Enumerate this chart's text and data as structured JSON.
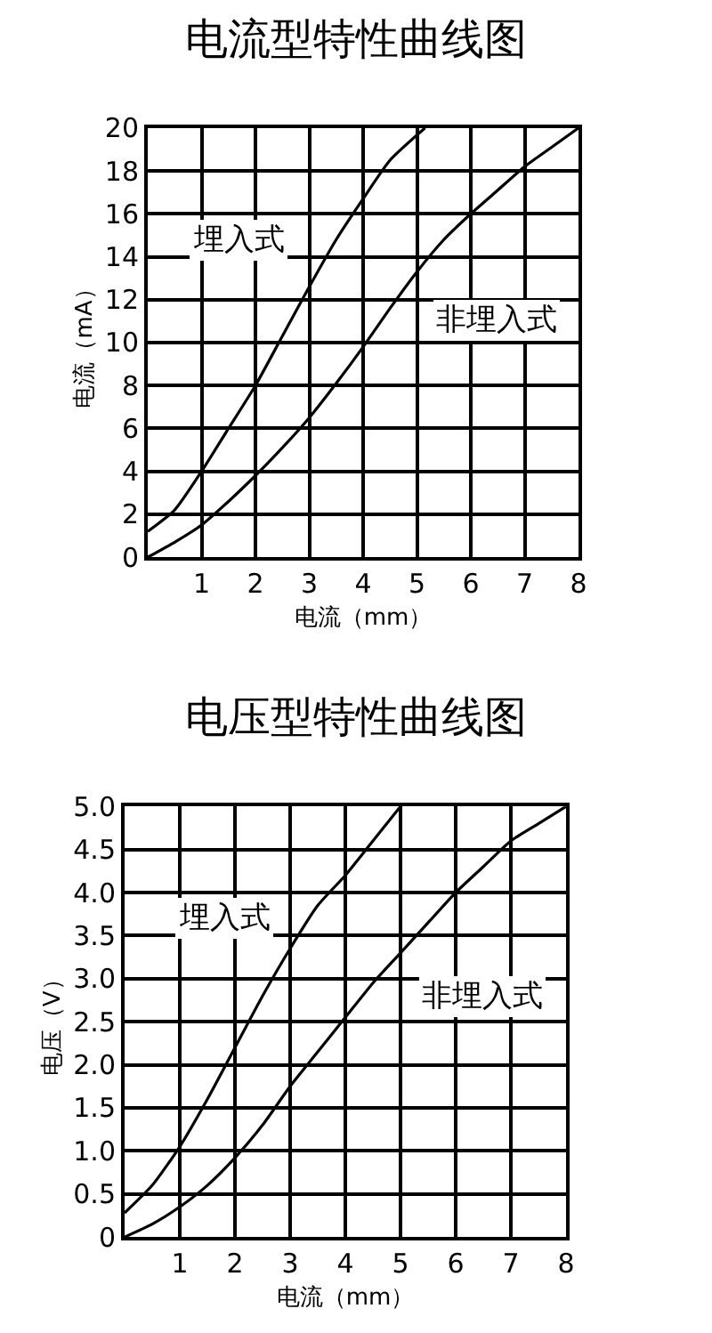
{
  "chart_data": [
    {
      "type": "line",
      "title": "电流型特性曲线图",
      "xlabel": "电流（mm）",
      "ylabel": "电流（mA）",
      "series": [
        {
          "name": "埋入式",
          "color": "#000000",
          "x": [
            0,
            0.5,
            1,
            1.5,
            2,
            2.5,
            3,
            3.5,
            4,
            4.5,
            5.15
          ],
          "values": [
            1.2,
            2.2,
            4,
            6,
            8,
            10.3,
            12.6,
            14.8,
            16.7,
            18.5,
            20
          ]
        },
        {
          "name": "非埋入式",
          "color": "#000000",
          "x": [
            0,
            0.5,
            1,
            1.5,
            2,
            2.5,
            3,
            3.5,
            4,
            4.5,
            5,
            5.5,
            6,
            6.5,
            7,
            7.5,
            8
          ],
          "values": [
            0,
            0.7,
            1.5,
            2.6,
            3.8,
            5.1,
            6.5,
            8.1,
            9.8,
            11.6,
            13.3,
            14.8,
            16,
            17.1,
            18.2,
            19.1,
            20
          ]
        }
      ],
      "xlim": [
        0,
        8
      ],
      "xticks": [
        1,
        2,
        3,
        4,
        5,
        6,
        7,
        8
      ],
      "ylim": [
        0,
        20
      ],
      "yticks": [
        0,
        2,
        4,
        6,
        8,
        10,
        12,
        14,
        16,
        18,
        20
      ],
      "grid": true,
      "legend": false
    },
    {
      "type": "line",
      "title": "电压型特性曲线图",
      "xlabel": "电流（mm）",
      "ylabel": "电压（V）",
      "series": [
        {
          "name": "埋入式",
          "color": "#000000",
          "x": [
            0,
            0.5,
            1,
            1.5,
            2,
            2.5,
            3,
            3.5,
            4,
            4.5,
            5
          ],
          "values": [
            0.28,
            0.6,
            1.05,
            1.6,
            2.2,
            2.8,
            3.35,
            3.85,
            4.2,
            4.6,
            5.0
          ]
        },
        {
          "name": "非埋入式",
          "color": "#000000",
          "x": [
            0,
            0.5,
            1,
            1.5,
            2,
            2.5,
            3,
            3.5,
            4,
            4.5,
            5,
            5.5,
            6,
            6.5,
            7,
            7.5,
            8
          ],
          "values": [
            0,
            0.15,
            0.35,
            0.6,
            0.92,
            1.3,
            1.75,
            2.15,
            2.55,
            2.95,
            3.3,
            3.65,
            4.0,
            4.3,
            4.6,
            4.8,
            5.0
          ]
        }
      ],
      "xlim": [
        0,
        8
      ],
      "xticks": [
        1,
        2,
        3,
        4,
        5,
        6,
        7,
        8
      ],
      "ylim": [
        0,
        5.0
      ],
      "yticks": [
        0,
        {
          "value": 0.5,
          "label": "0.5"
        },
        {
          "value": 1,
          "label": "1.0"
        },
        {
          "value": 1.5,
          "label": "1.5"
        },
        {
          "value": 2,
          "label": "2.0"
        },
        {
          "value": 2.5,
          "label": "2.5"
        },
        {
          "value": 3,
          "label": "3.0"
        },
        {
          "value": 3.5,
          "label": "3.5"
        },
        {
          "value": 4,
          "label": "4.0"
        },
        {
          "value": 4.5,
          "label": "4.5"
        },
        {
          "value": 5,
          "label": "5.0"
        }
      ],
      "grid": true,
      "legend": false
    }
  ]
}
